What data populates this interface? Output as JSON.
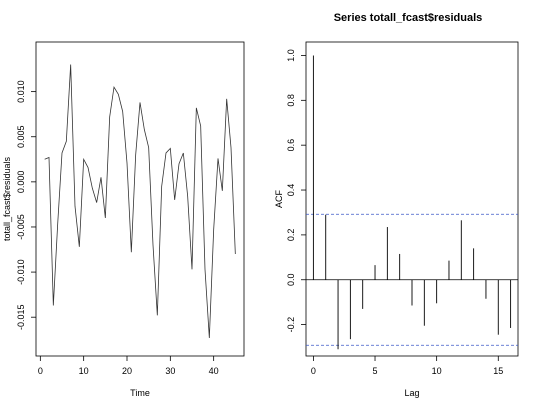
{
  "chart_data": [
    {
      "type": "line",
      "title": "",
      "xlabel": "Time",
      "ylabel": "totall_fcast$residuals",
      "xlim": [
        -1,
        47
      ],
      "ylim": [
        -0.0193,
        0.0155
      ],
      "x_ticks": [
        0,
        10,
        20,
        30,
        40
      ],
      "y_ticks": [
        -0.015,
        -0.01,
        -0.005,
        0.0,
        0.005,
        0.01
      ],
      "y_tick_labels": [
        "-0.015",
        "-0.010",
        "-0.005",
        "0.000",
        "0.005",
        "0.010"
      ],
      "x": [
        1,
        2,
        3,
        4,
        5,
        6,
        7,
        8,
        9,
        10,
        11,
        12,
        13,
        14,
        15,
        16,
        17,
        18,
        19,
        20,
        21,
        22,
        23,
        24,
        25,
        26,
        27,
        28,
        29,
        30,
        31,
        32,
        33,
        34,
        35,
        36,
        37,
        38,
        39,
        40,
        41,
        42,
        43,
        44,
        45
      ],
      "series": [
        {
          "values": [
            0.0025,
            0.0027,
            -0.0137,
            -0.0047,
            0.0032,
            0.0045,
            0.013,
            -0.0027,
            -0.0072,
            0.0025,
            0.0016,
            -0.0007,
            -0.0023,
            0.0005,
            -0.004,
            0.0072,
            0.0105,
            0.0097,
            0.0078,
            0.0021,
            -0.0078,
            0.003,
            0.0088,
            0.0058,
            0.0038,
            -0.007,
            -0.0148,
            -0.0005,
            0.0032,
            0.0037,
            -0.002,
            0.002,
            0.0032,
            -0.0016,
            -0.0097,
            0.0082,
            0.0062,
            -0.0097,
            -0.0173,
            -0.0053,
            0.0026,
            -0.001,
            0.0092,
            0.0038,
            -0.008
          ]
        }
      ]
    },
    {
      "type": "bar",
      "title": "Series  totall_fcast$residuals",
      "xlabel": "Lag",
      "ylabel": "ACF",
      "xlim": [
        -0.6,
        16.6
      ],
      "ylim": [
        -0.34,
        1.06
      ],
      "x_ticks": [
        0,
        5,
        10,
        15
      ],
      "y_ticks": [
        -0.2,
        0.0,
        0.2,
        0.4,
        0.6,
        0.8,
        1.0
      ],
      "y_tick_labels": [
        "-0.2",
        "0.0",
        "0.2",
        "0.4",
        "0.6",
        "0.8",
        "1.0"
      ],
      "lags": [
        0,
        1,
        2,
        3,
        4,
        5,
        6,
        7,
        8,
        9,
        10,
        11,
        12,
        13,
        14,
        15,
        16
      ],
      "values": [
        1.0,
        0.29,
        -0.31,
        -0.265,
        -0.13,
        0.065,
        0.235,
        0.115,
        -0.115,
        -0.205,
        -0.105,
        0.085,
        0.265,
        0.14,
        -0.085,
        -0.245,
        -0.215
      ],
      "confidence_bound": 0.292
    }
  ]
}
